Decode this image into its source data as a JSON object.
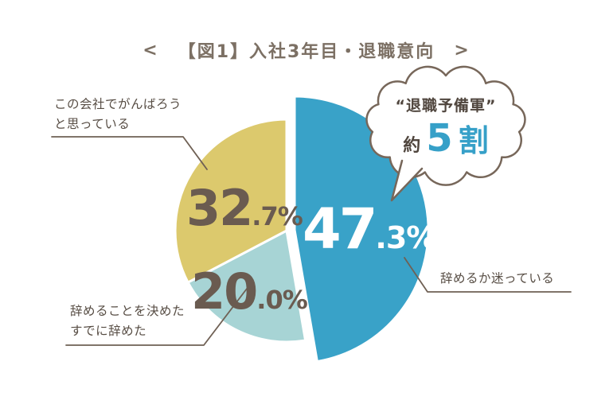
{
  "title": {
    "left_bracket": "<",
    "text": "【図1】入社3年目・退職意向",
    "right_bracket": ">"
  },
  "chart_data": {
    "type": "pie",
    "title": "入社3年目・退職意向",
    "unit": "%",
    "start_angle_deg": 0,
    "direction": "clockwise",
    "slices": [
      {
        "key": "wavering",
        "label": "辞めるか迷っている",
        "value": 47.3,
        "color": "#39A2C8",
        "emphasized": true
      },
      {
        "key": "decided",
        "label": "辞めることを決めた・すでに辞めた",
        "value": 20.0,
        "color": "#A7D4D5",
        "emphasized": false
      },
      {
        "key": "hope",
        "label": "この会社でがんばろうと思っている",
        "value": 32.7,
        "color": "#DCC96D",
        "emphasized": false
      }
    ],
    "annotation": "“退職予備軍” 約5割"
  },
  "percent_labels": {
    "wavering": {
      "whole": "47",
      "fraction": ".3%"
    },
    "decided": {
      "whole": "20",
      "fraction": ".0%"
    },
    "hope": {
      "whole": "32",
      "fraction": ".7%"
    }
  },
  "callouts": {
    "hope": {
      "line1": "この会社でがんばろう",
      "line2": "と思っている"
    },
    "decided": {
      "line1": "辞めることを決めた",
      "line2": "すでに辞めた"
    },
    "wavering": {
      "line1": "辞めるか迷っている"
    }
  },
  "bubble": {
    "quote": "“退職予備軍”",
    "approx": "約",
    "number": "5",
    "unit": "割"
  },
  "colors": {
    "wavering_blue": "#39A2C8",
    "decided_teal": "#A7D4D5",
    "hope_yellow": "#DCC96D",
    "number_text": "#6A5B50",
    "label_text": "#574D44",
    "title_text": "#7C7064",
    "outline_brown": "#77675A",
    "bubble_number_blue": "#36A0C8"
  }
}
